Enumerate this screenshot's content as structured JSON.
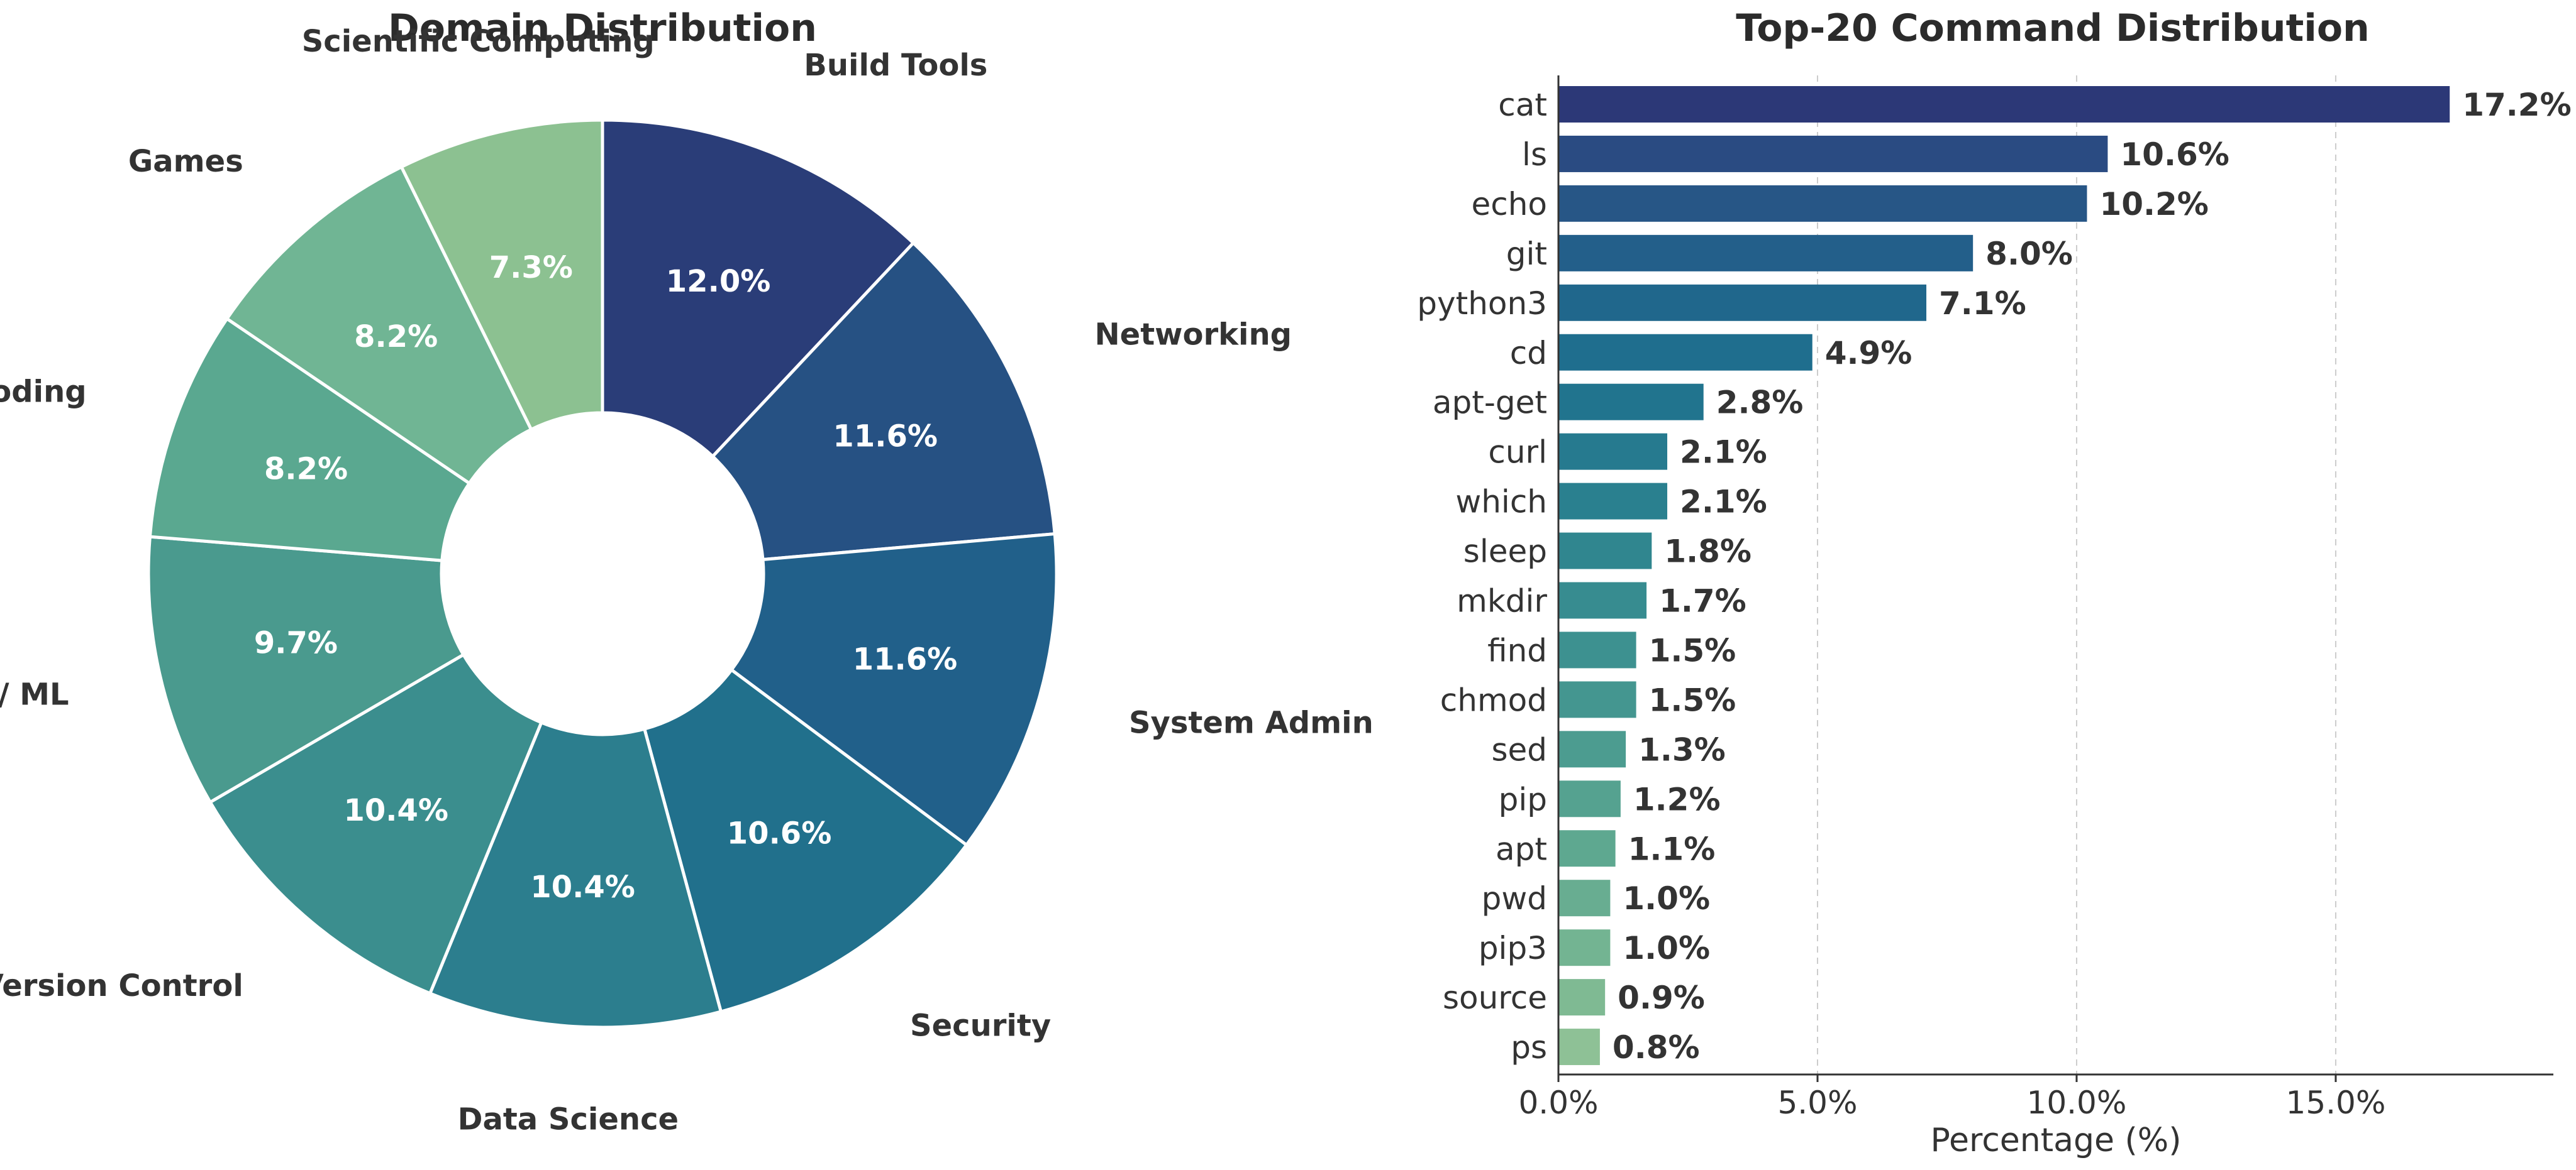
{
  "chart_data": [
    {
      "type": "pie",
      "title": "Domain Distribution",
      "donut": true,
      "start_angle": "12 o'clock, clockwise",
      "slices": [
        {
          "label": "Build Tools",
          "value": 12.0,
          "display": "12.0%",
          "color": "#2a3d78"
        },
        {
          "label": "Networking",
          "value": 11.6,
          "display": "11.6%",
          "color": "#265183"
        },
        {
          "label": "System Admin",
          "value": 11.6,
          "display": "11.6%",
          "color": "#21608a"
        },
        {
          "label": "Security",
          "value": 10.6,
          "display": "10.6%",
          "color": "#21708c"
        },
        {
          "label": "Data Science",
          "value": 10.4,
          "display": "10.4%",
          "color": "#2c7e8e"
        },
        {
          "label": "Version Control",
          "value": 10.4,
          "display": "10.4%",
          "color": "#3b8e8e"
        },
        {
          "label": "AI / ML",
          "value": 9.7,
          "display": "9.7%",
          "color": "#4a9a8e"
        },
        {
          "label": "Coding",
          "value": 8.2,
          "display": "8.2%",
          "color": "#5aa890"
        },
        {
          "label": "Games",
          "value": 8.2,
          "display": "8.2%",
          "color": "#70b594"
        },
        {
          "label": "Scientific Computing",
          "value": 7.3,
          "display": "7.3%",
          "color": "#8cc191"
        }
      ]
    },
    {
      "type": "bar",
      "orientation": "horizontal",
      "title": "Top-20 Command Distribution",
      "xlabel": "Percentage (%)",
      "ylabel": "",
      "xlim": [
        0,
        19.2
      ],
      "xticks": [
        0,
        5,
        10,
        15
      ],
      "xtick_labels": [
        "0.0%",
        "5.0%",
        "10.0%",
        "15.0%"
      ],
      "grid": "vertical dashed",
      "categories": [
        "cat",
        "ls",
        "echo",
        "git",
        "python3",
        "cd",
        "apt-get",
        "curl",
        "which",
        "sleep",
        "mkdir",
        "find",
        "chmod",
        "sed",
        "pip",
        "apt",
        "pwd",
        "pip3",
        "source",
        "ps"
      ],
      "values": [
        17.2,
        10.6,
        10.2,
        8.0,
        7.1,
        4.9,
        2.8,
        2.1,
        2.1,
        1.8,
        1.7,
        1.5,
        1.5,
        1.3,
        1.2,
        1.1,
        1.0,
        1.0,
        0.9,
        0.8
      ],
      "value_labels": [
        "17.2%",
        "10.6%",
        "10.2%",
        "8.0%",
        "7.1%",
        "4.9%",
        "2.8%",
        "2.1%",
        "2.1%",
        "1.8%",
        "1.7%",
        "1.5%",
        "1.5%",
        "1.3%",
        "1.2%",
        "1.1%",
        "1.0%",
        "1.0%",
        "0.9%",
        "0.8%"
      ],
      "colors": [
        "#2c3877",
        "#2a4b82",
        "#275686",
        "#235f8a",
        "#20678c",
        "#1f6e8e",
        "#21748e",
        "#267a8f",
        "#2a808f",
        "#30868f",
        "#378c90",
        "#3d9190",
        "#449690",
        "#4c9c90",
        "#55a290",
        "#5ea890",
        "#68ad91",
        "#73b492",
        "#7fba93",
        "#8ec196"
      ]
    }
  ]
}
